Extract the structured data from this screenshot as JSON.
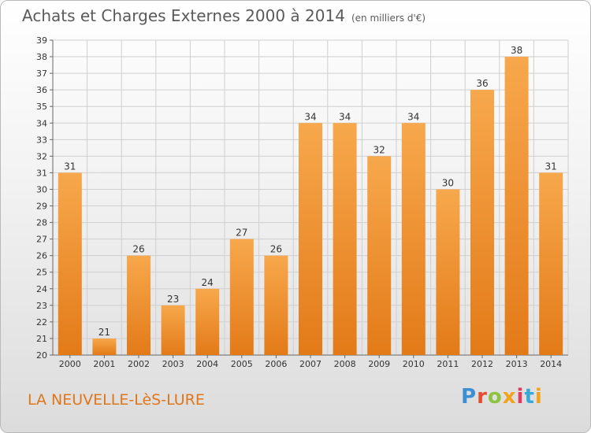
{
  "chart_data": {
    "type": "bar",
    "title": "Achats et Charges Externes 2000 à 2014",
    "subtitle": "(en milliers d'€)",
    "categories": [
      "2000",
      "2001",
      "2002",
      "2003",
      "2004",
      "2005",
      "2006",
      "2007",
      "2008",
      "2009",
      "2010",
      "2011",
      "2012",
      "2013",
      "2014"
    ],
    "values": [
      31,
      21,
      26,
      23,
      24,
      27,
      26,
      34,
      34,
      32,
      34,
      30,
      36,
      38,
      31
    ],
    "ylim": [
      20,
      39
    ],
    "yticks": [
      "20",
      "21",
      "22",
      "23",
      "24",
      "25",
      "26",
      "27",
      "28",
      "29",
      "30",
      "31",
      "32",
      "33",
      "34",
      "35",
      "36",
      "37",
      "38",
      "39"
    ],
    "grid": true,
    "colors": {
      "bar_light": "#f7a84c",
      "bar_dark": "#e37a18",
      "grid": "#cfcfcf"
    }
  },
  "footer": {
    "commune": "LA NEUVELLE-LèS-LURE",
    "logo": "Proxiti",
    "logo_colors": [
      "#3d8fd4",
      "#e64b2e",
      "#8cc43f",
      "#f2a31b",
      "#e23a5e",
      "#3aa7d9",
      "#f2a31b"
    ]
  }
}
